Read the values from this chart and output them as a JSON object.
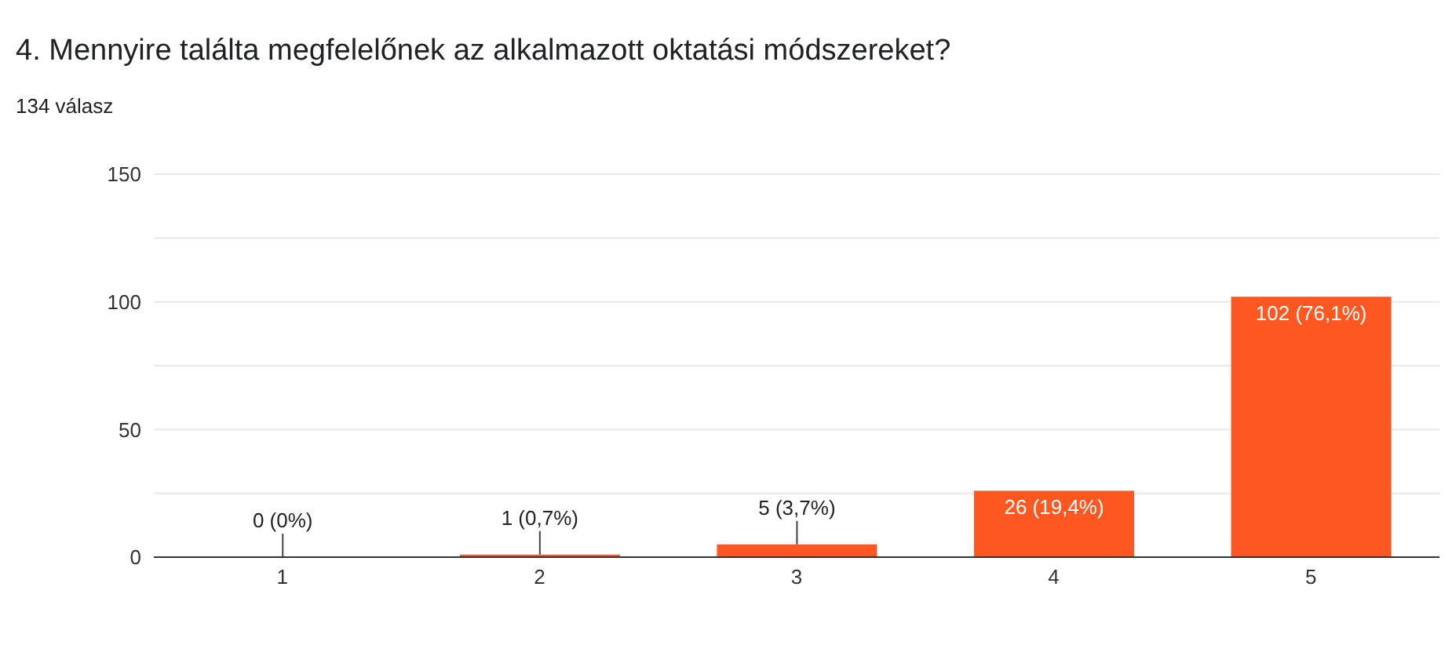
{
  "chart_data": {
    "type": "bar",
    "title": "4. Mennyire találta megfelelőnek az alkalmazott oktatási módszereket?",
    "subtitle": "134 válasz",
    "categories": [
      "1",
      "2",
      "3",
      "4",
      "5"
    ],
    "values": [
      0,
      1,
      5,
      26,
      102
    ],
    "value_labels": [
      "0 (0%)",
      "1 (0,7%)",
      "5 (3,7%)",
      "26 (19,4%)",
      "102 (76,1%)"
    ],
    "color": "#ff5722",
    "ylim": [
      0,
      150
    ],
    "yticks": [
      0,
      {
        "value": 25,
        "label": null
      },
      50,
      {
        "value": 75,
        "label": null
      },
      100,
      {
        "value": 125,
        "label": null
      },
      150
    ],
    "grid": "y",
    "legend": false
  }
}
